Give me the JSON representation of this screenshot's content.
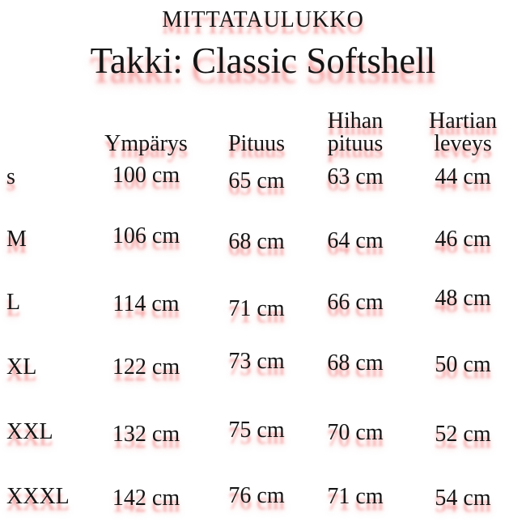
{
  "page": {
    "title_small": "MITTATAULUKKO",
    "title_large": "Takki: Classic Softshell"
  },
  "table": {
    "columns": [
      "",
      "Ympärys",
      "Pituus",
      "Hihan pituus",
      "Hartian leveys"
    ],
    "rows": [
      {
        "size": "s",
        "values": [
          "100 cm",
          "65 cm",
          "63 cm",
          "44 cm"
        ]
      },
      {
        "size": "M",
        "values": [
          "106 cm",
          "68 cm",
          "64 cm",
          "46 cm"
        ]
      },
      {
        "size": "L",
        "values": [
          "114 cm",
          "71 cm",
          "66 cm",
          "48 cm"
        ]
      },
      {
        "size": "XL",
        "values": [
          "122 cm",
          "73 cm",
          "68 cm",
          "50 cm"
        ]
      },
      {
        "size": "XXL",
        "values": [
          "132 cm",
          "75 cm",
          "70 cm",
          "52 cm"
        ]
      },
      {
        "size": "XXXL",
        "values": [
          "142 cm",
          "76 cm",
          "71 cm",
          "54 cm"
        ]
      }
    ]
  },
  "colors": {
    "text": "#151515",
    "ghost_shadow": "#f28a8a",
    "background": "#ffffff"
  }
}
